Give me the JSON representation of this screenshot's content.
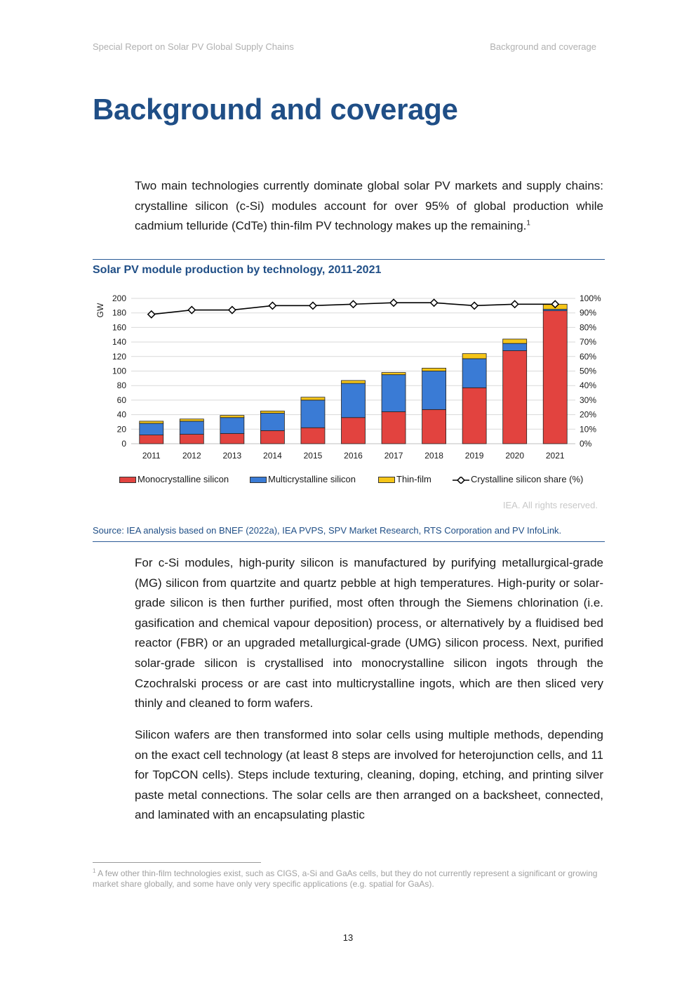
{
  "header": {
    "left": "Special Report on Solar PV Global Supply Chains",
    "right": "Background and coverage"
  },
  "title": "Background and coverage",
  "paragraphs": {
    "p1": "Two main technologies currently dominate global solar PV markets and supply chains: crystalline silicon (c-Si) modules account for over 95% of global production while cadmium telluride (CdTe) thin-film PV technology makes up the remaining.",
    "p1_note": "1",
    "p2": "For c-Si modules, high-purity silicon is manufactured by purifying metallurgical-grade (MG) silicon from quartzite and quartz pebble at high temperatures. High-purity or solar-grade silicon is then further purified, most often through the Siemens chlorination (i.e. gasification and chemical vapour deposition) process, or alternatively by a fluidised bed reactor (FBR) or an upgraded metallurgical-grade (UMG) silicon process. Next, purified solar-grade silicon is crystallised into monocrystalline silicon ingots through the Czochralski process or are cast into multicrystalline ingots, which are then sliced very thinly and cleaned to form wafers.",
    "p3": "Silicon wafers are then transformed into solar cells using multiple methods, depending on the exact cell technology (at least 8 steps are involved for heterojunction cells, and 11 for TopCON cells). Steps include texturing, cleaning, doping, etching, and printing silver paste metal connections. The solar cells are then arranged on a backsheet, connected, and laminated with an encapsulating plastic"
  },
  "figure": {
    "title": "Solar PV module production by technology, 2011-2021",
    "rights": "IEA. All rights reserved.",
    "source": "Source: IEA analysis based on BNEF (2022a), IEA PVPS, SPV Market Research, RTS Corporation and PV InfoLink."
  },
  "chart_data": {
    "type": "bar",
    "stacked": true,
    "categories": [
      "2011",
      "2012",
      "2013",
      "2014",
      "2015",
      "2016",
      "2017",
      "2018",
      "2019",
      "2020",
      "2021"
    ],
    "series": [
      {
        "name": "Monocrystalline silicon",
        "color": "#e2433f",
        "values": [
          12,
          13,
          14,
          18,
          22,
          36,
          44,
          47,
          77,
          128,
          183
        ]
      },
      {
        "name": "Multicrystalline silicon",
        "color": "#3a7bd5",
        "values": [
          16,
          18,
          22,
          24,
          38,
          47,
          51,
          53,
          40,
          10,
          2
        ]
      },
      {
        "name": "Thin-film",
        "color": "#f5c518",
        "values": [
          3,
          3,
          3,
          3,
          4,
          4,
          3,
          4,
          7,
          6,
          7
        ]
      }
    ],
    "line": {
      "name": "Crystalline silicon share (%)",
      "axis": "right",
      "values": [
        89,
        92,
        92,
        95,
        95,
        96,
        97,
        97,
        95,
        96,
        96
      ]
    },
    "ylabel": "GW",
    "ylim": [
      0,
      200
    ],
    "yticks": [
      0,
      20,
      40,
      60,
      80,
      100,
      120,
      140,
      160,
      180,
      200
    ],
    "y2lim": [
      0,
      100
    ],
    "y2ticks": [
      "0%",
      "10%",
      "20%",
      "30%",
      "40%",
      "50%",
      "60%",
      "70%",
      "80%",
      "90%",
      "100%"
    ],
    "grid": true,
    "legend_position": "bottom"
  },
  "footnote": {
    "mark": "1",
    "text": " A few other thin-film technologies exist, such as CIGS, a-Si and GaAs cells, but they do not currently represent a significant or growing market share globally, and some have only very specific applications (e.g. spatial for GaAs)."
  },
  "page_number": "13"
}
